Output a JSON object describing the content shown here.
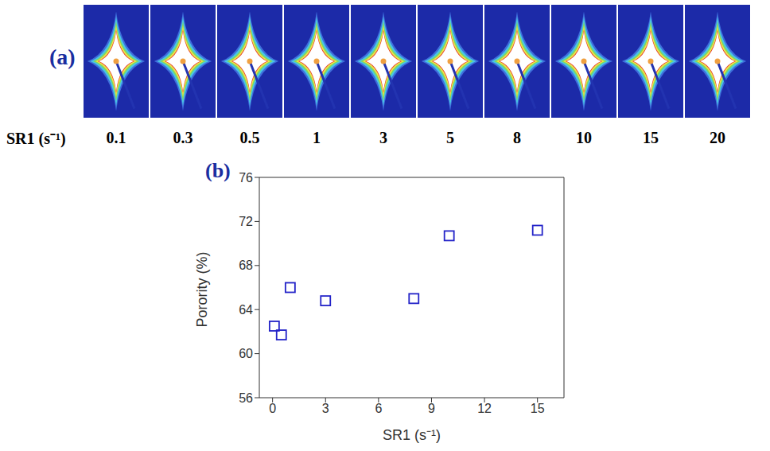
{
  "panel_a": {
    "label": "(a)",
    "row_label": "SR1 (s⁻¹)",
    "sr1": [
      0.1,
      0.3,
      0.5,
      1,
      3,
      5,
      8,
      10,
      15,
      20
    ]
  },
  "chart_data": {
    "type": "scatter",
    "panel_label": "(b)",
    "x_label": "SR1 (s⁻¹)",
    "y_label": "Porority (%)",
    "x": [
      0.1,
      0.5,
      1,
      3,
      8,
      10,
      15
    ],
    "values": [
      62.5,
      61.7,
      66,
      64.8,
      65,
      70.7,
      71.2
    ],
    "color": "#2323c8",
    "marker": "square",
    "xlim": [
      -0.75,
      16.5
    ],
    "xticks": [
      0,
      3,
      6,
      9,
      12,
      15
    ],
    "ylim": [
      56,
      76
    ],
    "yticks": [
      56,
      60,
      64,
      68,
      72,
      76
    ],
    "grid": false
  }
}
